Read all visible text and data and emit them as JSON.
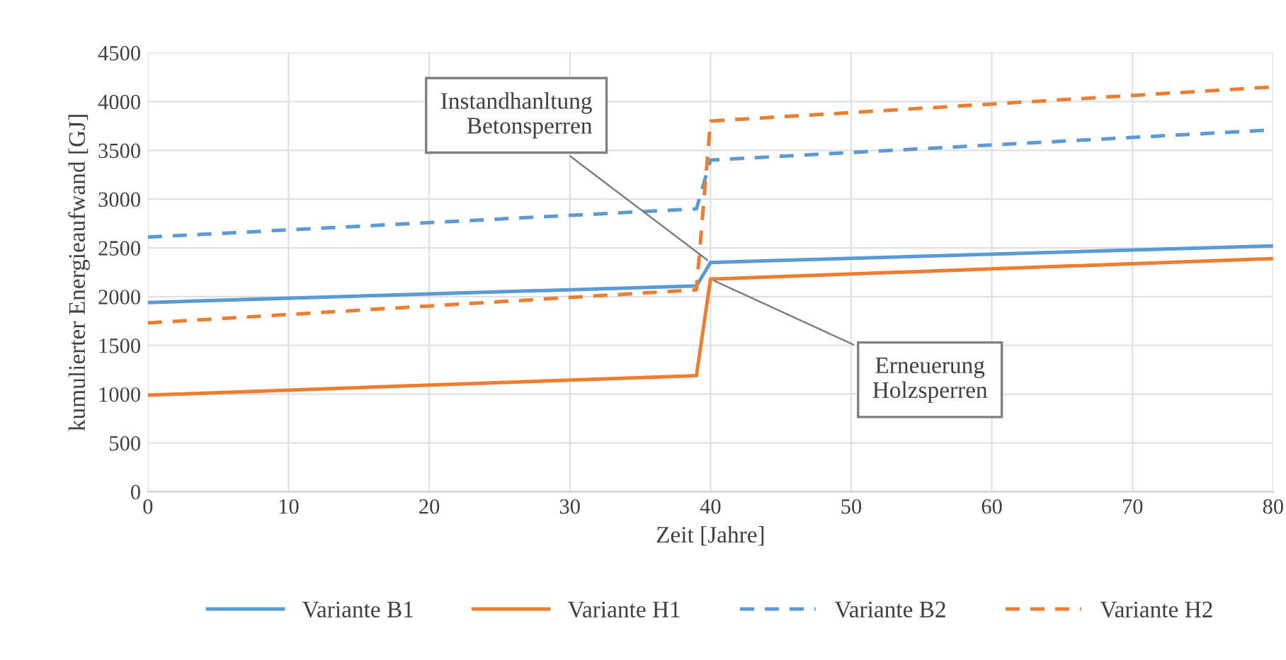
{
  "chart_data": {
    "type": "line",
    "xlabel": "Zeit [Jahre]",
    "ylabel": "kumulierter Energieaufwand [GJ]",
    "xlim": [
      0,
      80
    ],
    "xticks": [
      0,
      10,
      20,
      30,
      40,
      50,
      60,
      70,
      80
    ],
    "ylim": [
      0,
      4500
    ],
    "yticks": [
      0,
      500,
      1000,
      1500,
      2000,
      2500,
      3000,
      3500,
      4000,
      4500
    ],
    "grid": true,
    "legend": "bottom",
    "marker": "none",
    "series": [
      {
        "name": "Variante B1",
        "color": "#5b9bd5",
        "line_style": "solid",
        "x": [
          0,
          39,
          40,
          80
        ],
        "values": [
          1940,
          2110,
          2350,
          2520
        ]
      },
      {
        "name": "Variante H1",
        "color": "#ed7d31",
        "line_style": "solid",
        "x": [
          0,
          39,
          40,
          80
        ],
        "values": [
          990,
          1190,
          2180,
          2390
        ]
      },
      {
        "name": "Variante B2",
        "color": "#5b9bd5",
        "line_style": "dashed",
        "x": [
          0,
          39,
          40,
          80
        ],
        "values": [
          2610,
          2900,
          3400,
          3710
        ]
      },
      {
        "name": "Variante H2",
        "color": "#ed7d31",
        "line_style": "dashed",
        "x": [
          0,
          39,
          40,
          80
        ],
        "values": [
          1730,
          2070,
          3800,
          4150
        ]
      }
    ],
    "annotations": [
      {
        "text": "Instandhanltung\nBetonsperren",
        "x": 40,
        "y": 2350
      },
      {
        "text": "Erneuerung\nHolzsperren",
        "x": 40,
        "y": 2180
      }
    ]
  }
}
